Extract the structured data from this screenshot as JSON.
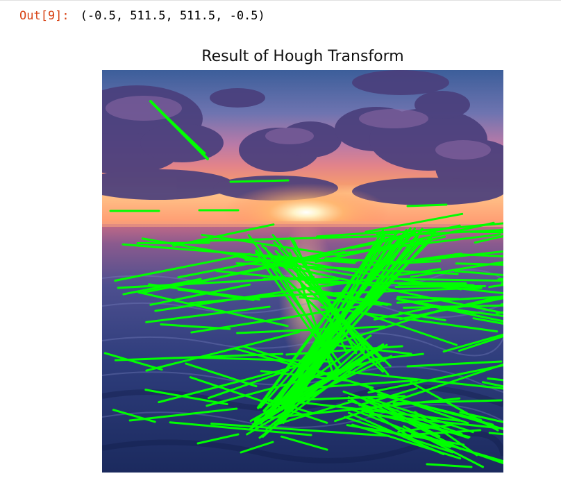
{
  "output": {
    "prompt": "Out[9]:",
    "value": "(-0.5, 511.5, 511.5, -0.5)"
  },
  "figure": {
    "title": "Result of Hough Transform",
    "axis_extent": [
      -0.5,
      511.5,
      511.5,
      -0.5
    ],
    "axis_off": true,
    "image_subject": "ocean-sunset-photo",
    "line_color": "#00ff00"
  },
  "colors": {
    "prompt": "#d84315",
    "hough_line": "#00ff00"
  }
}
